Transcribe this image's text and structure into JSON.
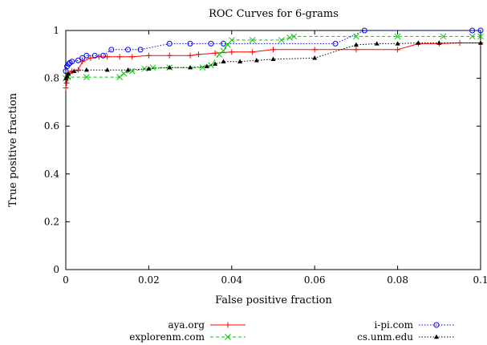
{
  "chart_data": {
    "type": "line",
    "title": "ROC Curves for 6-grams",
    "xlabel": "False positive fraction",
    "ylabel": "True positive fraction",
    "xlim": [
      0,
      0.1
    ],
    "ylim": [
      0,
      1
    ],
    "x_ticks": [
      0,
      0.02,
      0.04,
      0.06,
      0.08,
      0.1
    ],
    "x_tick_labels": [
      "0",
      "0.02",
      "0.04",
      "0.06",
      "0.08",
      "0.1"
    ],
    "y_ticks": [
      0,
      0.2,
      0.4,
      0.6,
      0.8,
      1
    ],
    "y_tick_labels": [
      "0",
      "0.2",
      "0.4",
      "0.6",
      "0.8",
      "1"
    ],
    "grid": false,
    "legend_position": "bottom",
    "series": [
      {
        "name": "aya.org",
        "color": "#ff0000",
        "marker": "plus",
        "dash": "solid",
        "points": [
          [
            0,
            0.76
          ],
          [
            0.0002,
            0.78
          ],
          [
            0.0005,
            0.8
          ],
          [
            0.001,
            0.82
          ],
          [
            0.0015,
            0.83
          ],
          [
            0.003,
            0.835
          ],
          [
            0.004,
            0.87
          ],
          [
            0.006,
            0.885
          ],
          [
            0.008,
            0.89
          ],
          [
            0.01,
            0.89
          ],
          [
            0.013,
            0.89
          ],
          [
            0.016,
            0.89
          ],
          [
            0.02,
            0.895
          ],
          [
            0.025,
            0.895
          ],
          [
            0.03,
            0.895
          ],
          [
            0.032,
            0.9
          ],
          [
            0.036,
            0.905
          ],
          [
            0.04,
            0.91
          ],
          [
            0.045,
            0.91
          ],
          [
            0.05,
            0.92
          ],
          [
            0.06,
            0.92
          ],
          [
            0.07,
            0.92
          ],
          [
            0.08,
            0.92
          ],
          [
            0.085,
            0.945
          ],
          [
            0.09,
            0.945
          ],
          [
            0.095,
            0.948
          ],
          [
            0.1,
            0.948
          ]
        ]
      },
      {
        "name": "i-pi.com",
        "color": "#0000ff",
        "marker": "circle",
        "dash": "dotted",
        "points": [
          [
            0,
            0.83
          ],
          [
            0.0003,
            0.85
          ],
          [
            0.0007,
            0.86
          ],
          [
            0.001,
            0.865
          ],
          [
            0.0015,
            0.87
          ],
          [
            0.003,
            0.875
          ],
          [
            0.004,
            0.885
          ],
          [
            0.005,
            0.895
          ],
          [
            0.007,
            0.895
          ],
          [
            0.009,
            0.895
          ],
          [
            0.011,
            0.92
          ],
          [
            0.015,
            0.92
          ],
          [
            0.018,
            0.92
          ],
          [
            0.025,
            0.945
          ],
          [
            0.03,
            0.945
          ],
          [
            0.035,
            0.945
          ],
          [
            0.038,
            0.945
          ],
          [
            0.065,
            0.945
          ],
          [
            0.072,
            1.0
          ],
          [
            0.098,
            1.0
          ],
          [
            0.1,
            1.0
          ]
        ]
      },
      {
        "name": "explorenm.com",
        "color": "#00c800",
        "marker": "cross",
        "dash": "dashed",
        "points": [
          [
            0,
            0.8
          ],
          [
            0.0005,
            0.805
          ],
          [
            0.005,
            0.805
          ],
          [
            0.013,
            0.805
          ],
          [
            0.014,
            0.82
          ],
          [
            0.016,
            0.83
          ],
          [
            0.019,
            0.84
          ],
          [
            0.021,
            0.845
          ],
          [
            0.025,
            0.845
          ],
          [
            0.033,
            0.845
          ],
          [
            0.035,
            0.855
          ],
          [
            0.037,
            0.9
          ],
          [
            0.038,
            0.915
          ],
          [
            0.039,
            0.94
          ],
          [
            0.04,
            0.96
          ],
          [
            0.045,
            0.96
          ],
          [
            0.052,
            0.96
          ],
          [
            0.054,
            0.97
          ],
          [
            0.055,
            0.975
          ],
          [
            0.07,
            0.975
          ],
          [
            0.08,
            0.975
          ],
          [
            0.091,
            0.975
          ],
          [
            0.098,
            0.975
          ],
          [
            0.1,
            0.975
          ]
        ]
      },
      {
        "name": "cs.unm.edu",
        "color": "#000000",
        "marker": "triangle",
        "dash": "dotted",
        "points": [
          [
            0,
            0.8
          ],
          [
            0.0003,
            0.81
          ],
          [
            0.0006,
            0.82
          ],
          [
            0.002,
            0.83
          ],
          [
            0.005,
            0.835
          ],
          [
            0.01,
            0.835
          ],
          [
            0.015,
            0.835
          ],
          [
            0.02,
            0.84
          ],
          [
            0.025,
            0.845
          ],
          [
            0.03,
            0.845
          ],
          [
            0.034,
            0.85
          ],
          [
            0.036,
            0.86
          ],
          [
            0.038,
            0.87
          ],
          [
            0.042,
            0.87
          ],
          [
            0.046,
            0.875
          ],
          [
            0.05,
            0.88
          ],
          [
            0.06,
            0.885
          ],
          [
            0.07,
            0.94
          ],
          [
            0.075,
            0.945
          ],
          [
            0.08,
            0.945
          ],
          [
            0.085,
            0.948
          ],
          [
            0.09,
            0.948
          ],
          [
            0.1,
            0.948
          ]
        ]
      }
    ]
  }
}
